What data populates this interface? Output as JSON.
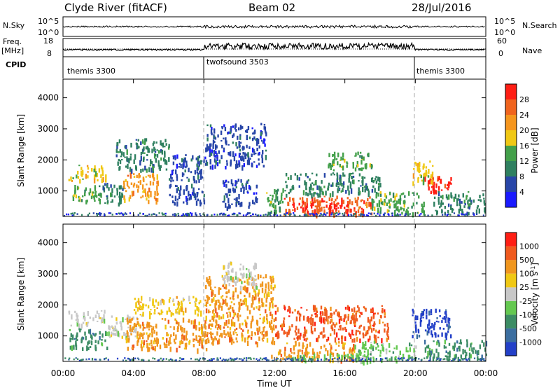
{
  "header": {
    "station": "Clyde River (fitACF)",
    "beam": "Beam 02",
    "date": "28/Jul/2016"
  },
  "panels": {
    "nsky_label": "N.Sky",
    "nsearch_label": "N.Search",
    "freq_label_1": "Freq.",
    "freq_label_2": "[MHz]",
    "nave_label": "Nave",
    "cpid_label": "CPID",
    "noise_ticks_left": [
      "10^5",
      "10^0"
    ],
    "noise_ticks_right": [
      "10^5",
      "10^0"
    ],
    "freq_ticks_left": [
      "18",
      "8"
    ],
    "freq_ticks_right": [
      "60",
      "0"
    ],
    "cpid_segments": [
      {
        "label": "themis 3300",
        "start": 0,
        "end": 8
      },
      {
        "label": "twofsound 3503",
        "start": 8,
        "end": 20
      },
      {
        "label": "themis 3300",
        "start": 20,
        "end": 24
      }
    ]
  },
  "axes": {
    "xlabel": "Time UT",
    "ylabel": "Slant Range [km]",
    "xticks": [
      "00:00",
      "04:00",
      "08:00",
      "12:00",
      "16:00",
      "20:00",
      "00:00"
    ],
    "yticks": [
      "1000",
      "2000",
      "3000",
      "4000"
    ]
  },
  "colorbars": {
    "power": {
      "label": "Power [dB]",
      "ticks": [
        "4",
        "8",
        "12",
        "16",
        "20",
        "24",
        "28"
      ],
      "colors": [
        "#1a1aff",
        "#2846a8",
        "#2f8060",
        "#43a04a",
        "#f0c814",
        "#f5961e",
        "#f0641e",
        "#ff1e14"
      ]
    },
    "velocity": {
      "label": "Velocity [m s",
      "label_sup": "-1",
      "label_end": "]",
      "ticks": [
        "1000",
        "500",
        "100",
        "25",
        "-25",
        "-100",
        "-500",
        "-1000"
      ],
      "colors": [
        "#2340c8",
        "#3c6ea0",
        "#3c8c64",
        "#64c850",
        "#c8c8c8",
        "#f0c814",
        "#f0961e",
        "#f05a1e",
        "#ff1e14"
      ]
    }
  },
  "chart_data": {
    "type": "heatmap",
    "x_units": "hours UT",
    "xlim": [
      0,
      24
    ],
    "ylim": [
      180,
      4600
    ],
    "ylabel": "Slant Range [km]",
    "xlabel": "Time UT",
    "power_regions": [
      {
        "t0": 0.3,
        "t1": 2.4,
        "r0": 1350,
        "r1": 1850,
        "level": 4
      },
      {
        "t0": 0.5,
        "t1": 2.2,
        "r0": 700,
        "r1": 1200,
        "level": 3
      },
      {
        "t0": 2.2,
        "t1": 3.4,
        "r0": 600,
        "r1": 1300,
        "level": 2
      },
      {
        "t0": 3.4,
        "t1": 5.4,
        "r0": 700,
        "r1": 1600,
        "level": 5
      },
      {
        "t0": 3.0,
        "t1": 6.0,
        "r0": 1700,
        "r1": 2700,
        "level": 2
      },
      {
        "t0": 6.0,
        "t1": 8.0,
        "r0": 600,
        "r1": 2200,
        "level": 1
      },
      {
        "t0": 8.0,
        "t1": 11.5,
        "r0": 1800,
        "r1": 3200,
        "level": 1
      },
      {
        "t0": 9.0,
        "t1": 11.0,
        "r0": 500,
        "r1": 1400,
        "level": 1
      },
      {
        "t0": 11.5,
        "t1": 12.5,
        "r0": 300,
        "r1": 1100,
        "level": 3
      },
      {
        "t0": 12.5,
        "t1": 17.5,
        "r0": 250,
        "r1": 850,
        "level": 6
      },
      {
        "t0": 13.0,
        "t1": 16.5,
        "r0": 350,
        "r1": 700,
        "level": 7
      },
      {
        "t0": 12.5,
        "t1": 18.0,
        "r0": 900,
        "r1": 1600,
        "level": 2
      },
      {
        "t0": 17.5,
        "t1": 20.5,
        "r0": 300,
        "r1": 1000,
        "level": 3
      },
      {
        "t0": 20.5,
        "t1": 22.0,
        "r0": 1000,
        "r1": 1500,
        "level": 7
      },
      {
        "t0": 19.8,
        "t1": 21.0,
        "r0": 1300,
        "r1": 2000,
        "level": 4
      },
      {
        "t0": 21.0,
        "t1": 24.0,
        "r0": 300,
        "r1": 1000,
        "level": 2
      },
      {
        "t0": 15.0,
        "t1": 17.5,
        "r0": 1700,
        "r1": 2300,
        "level": 3
      }
    ],
    "velocity_regions": [
      {
        "t0": 0.3,
        "t1": 2.4,
        "r0": 1350,
        "r1": 1850,
        "level": 4
      },
      {
        "t0": 0.3,
        "t1": 2.5,
        "r0": 600,
        "r1": 1300,
        "level": 2
      },
      {
        "t0": 2.5,
        "t1": 4.5,
        "r0": 1000,
        "r1": 1700,
        "level": 4
      },
      {
        "t0": 3.5,
        "t1": 8.5,
        "r0": 600,
        "r1": 1600,
        "level": 6
      },
      {
        "t0": 4.0,
        "t1": 8.0,
        "r0": 1700,
        "r1": 2300,
        "level": 5
      },
      {
        "t0": 8.0,
        "t1": 12.0,
        "r0": 800,
        "r1": 3000,
        "level": 6
      },
      {
        "t0": 9.0,
        "t1": 11.0,
        "r0": 2600,
        "r1": 3400,
        "level": 4
      },
      {
        "t0": 11.8,
        "t1": 16.5,
        "r0": 250,
        "r1": 850,
        "level": 6
      },
      {
        "t0": 12.0,
        "t1": 18.5,
        "r0": 900,
        "r1": 2000,
        "level": 7
      },
      {
        "t0": 13.0,
        "t1": 17.5,
        "r0": 200,
        "r1": 450,
        "level": 3
      },
      {
        "t0": 16.5,
        "t1": 20.0,
        "r0": 250,
        "r1": 850,
        "level": 3
      },
      {
        "t0": 19.8,
        "t1": 22.0,
        "r0": 1000,
        "r1": 1900,
        "level": 0
      },
      {
        "t0": 20.5,
        "t1": 24.0,
        "r0": 300,
        "r1": 900,
        "level": 2
      }
    ]
  }
}
